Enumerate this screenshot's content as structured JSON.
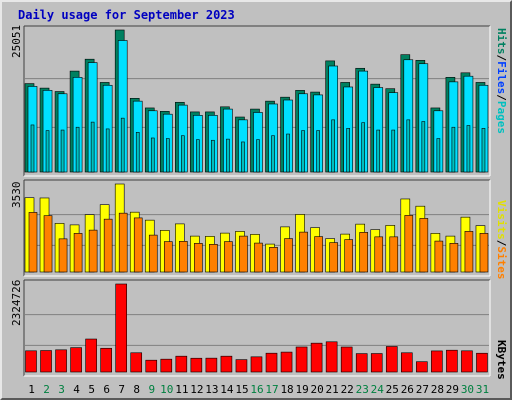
{
  "title": "Daily usage for September 2023",
  "colors": {
    "pages": "#00c0c0",
    "files": "#0040ff",
    "hits": "#008060",
    "sites": "#ff8000",
    "visits": "#ffff00",
    "kbytes": "#ff0000",
    "weekday_label": "#000000",
    "weekend_label": "#008040",
    "background": "#c0c0c0"
  },
  "legend_right": {
    "hits": "Hits",
    "files": "Files",
    "pages": "Pages",
    "visits": "Visits",
    "sites": "Sites",
    "kbytes": "KBytes",
    "sep1": "/",
    "sep2": "/",
    "sep3": "/"
  },
  "y_max_labels": {
    "hits": "25051",
    "visits": "3530",
    "kbytes": "2324726"
  },
  "chart_data": [
    {
      "type": "bar",
      "title": "Hits / Files / Pages",
      "categories": [
        "1",
        "2",
        "3",
        "4",
        "5",
        "6",
        "7",
        "8",
        "9",
        "10",
        "11",
        "12",
        "13",
        "14",
        "15",
        "16",
        "17",
        "18",
        "19",
        "20",
        "21",
        "22",
        "23",
        "24",
        "25",
        "26",
        "27",
        "28",
        "29",
        "30",
        "31"
      ],
      "weekend_days": [
        "2",
        "3",
        "9",
        "10",
        "16",
        "17",
        "23",
        "24",
        "30",
        "31"
      ],
      "ylim": [
        0,
        25051
      ],
      "series": [
        {
          "name": "Hits",
          "values": [
            15600,
            14800,
            14200,
            17800,
            19900,
            15800,
            25051,
            13000,
            11300,
            10700,
            12300,
            10600,
            10600,
            11500,
            9700,
            11100,
            12500,
            13200,
            14400,
            14100,
            19600,
            15800,
            18300,
            15500,
            14700,
            20700,
            19700,
            11300,
            16700,
            17500,
            15800
          ]
        },
        {
          "name": "Files",
          "values": [
            15100,
            14400,
            13800,
            16700,
            19300,
            15300,
            23200,
            12500,
            10800,
            10200,
            11800,
            10000,
            10000,
            11100,
            9200,
            10500,
            12000,
            12700,
            13800,
            13600,
            18700,
            15000,
            17800,
            14900,
            14000,
            19800,
            19100,
            10800,
            15900,
            16900,
            15300
          ]
        },
        {
          "name": "Pages",
          "values": [
            8300,
            7300,
            7400,
            7900,
            8800,
            7600,
            9500,
            7000,
            6000,
            5900,
            6400,
            5700,
            5600,
            5800,
            5300,
            5700,
            6400,
            6700,
            7300,
            7300,
            9200,
            7700,
            8700,
            7400,
            7400,
            9200,
            8900,
            5900,
            7900,
            8200,
            7700
          ]
        }
      ]
    },
    {
      "type": "bar",
      "title": "Visits / Sites",
      "categories": [
        "1",
        "2",
        "3",
        "4",
        "5",
        "6",
        "7",
        "8",
        "9",
        "10",
        "11",
        "12",
        "13",
        "14",
        "15",
        "16",
        "17",
        "18",
        "19",
        "20",
        "21",
        "22",
        "23",
        "24",
        "25",
        "26",
        "27",
        "28",
        "29",
        "30",
        "31"
      ],
      "ylim": [
        0,
        3530
      ],
      "series": [
        {
          "name": "Visits",
          "values": [
            2980,
            2970,
            1950,
            1890,
            2300,
            2700,
            3530,
            2400,
            2080,
            1670,
            1930,
            1440,
            1430,
            1560,
            1630,
            1510,
            1120,
            1810,
            2310,
            1780,
            1340,
            1520,
            1920,
            1700,
            1870,
            2930,
            2640,
            1550,
            1440,
            2200,
            1860
          ]
        },
        {
          "name": "Sites",
          "values": [
            2390,
            2260,
            1330,
            1550,
            1680,
            2120,
            2360,
            2170,
            1480,
            1220,
            1230,
            1150,
            1110,
            1220,
            1440,
            1160,
            990,
            1340,
            1600,
            1420,
            1180,
            1300,
            1590,
            1410,
            1410,
            2270,
            2150,
            1240,
            1150,
            1630,
            1550
          ]
        }
      ]
    },
    {
      "type": "bar",
      "title": "KBytes",
      "categories": [
        "1",
        "2",
        "3",
        "4",
        "5",
        "6",
        "7",
        "8",
        "9",
        "10",
        "11",
        "12",
        "13",
        "14",
        "15",
        "16",
        "17",
        "18",
        "19",
        "20",
        "21",
        "22",
        "23",
        "24",
        "25",
        "26",
        "27",
        "28",
        "29",
        "30",
        "31"
      ],
      "ylim": [
        0,
        2324726
      ],
      "series": [
        {
          "name": "KBytes",
          "values": [
            560000,
            567000,
            586000,
            644000,
            871000,
            627000,
            2324726,
            508000,
            312000,
            339000,
            418000,
            364000,
            366000,
            418000,
            327000,
            401000,
            497000,
            526000,
            661000,
            762000,
            798000,
            660000,
            486000,
            488000,
            674000,
            508000,
            272000,
            557000,
            576000,
            560000,
            496000
          ]
        }
      ]
    }
  ]
}
